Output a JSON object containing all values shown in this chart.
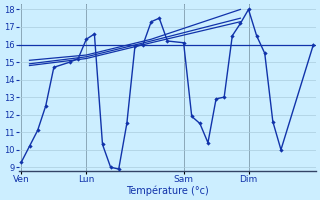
{
  "background_color": "#cceeff",
  "grid_color": "#aaccdd",
  "line_color": "#1133aa",
  "axis_label": "Température (°c)",
  "ylim": [
    8.8,
    18.3
  ],
  "yticks": [
    9,
    10,
    11,
    12,
    13,
    14,
    15,
    16,
    17,
    18
  ],
  "xlim": [
    -0.3,
    36.3
  ],
  "day_ticks": [
    0,
    8,
    20,
    28
  ],
  "day_labels": [
    "Ven",
    "Lun",
    "Sam",
    "Dim"
  ],
  "hline_y": 16.0,
  "main_series": {
    "x": [
      0,
      1,
      2,
      3,
      4,
      6,
      7,
      8,
      9,
      10,
      11,
      12,
      13,
      14,
      15,
      16,
      17,
      18,
      20,
      21,
      22,
      23,
      24,
      25,
      26,
      27,
      28,
      29,
      30,
      31,
      32,
      36
    ],
    "y": [
      9.3,
      10.2,
      11.1,
      12.5,
      14.7,
      15.0,
      15.2,
      16.3,
      16.6,
      10.3,
      9.0,
      8.9,
      11.5,
      15.9,
      16.0,
      17.3,
      17.5,
      16.2,
      16.1,
      11.9,
      11.5,
      10.4,
      12.9,
      13.0,
      16.5,
      17.2,
      18.0,
      16.5,
      15.5,
      11.6,
      10.0,
      16.0
    ]
  },
  "trend1": {
    "x": [
      1,
      8,
      16,
      27
    ],
    "y": [
      14.8,
      15.2,
      16.1,
      17.3
    ]
  },
  "trend2": {
    "x": [
      1,
      8,
      16,
      27
    ],
    "y": [
      14.9,
      15.3,
      16.2,
      17.5
    ]
  },
  "trend3": {
    "x": [
      1,
      8,
      16,
      27
    ],
    "y": [
      15.1,
      15.4,
      16.3,
      18.0
    ]
  }
}
